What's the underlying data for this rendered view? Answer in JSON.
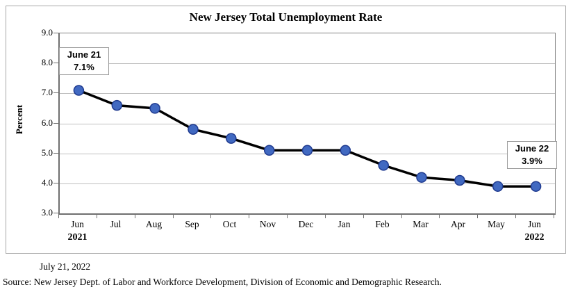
{
  "chart_data": {
    "type": "line",
    "title": "New Jersey Total Unemployment Rate",
    "xlabel": "",
    "ylabel": "Percent",
    "categories": [
      "Jun",
      "Jul",
      "Aug",
      "Sep",
      "Oct",
      "Nov",
      "Dec",
      "Jan",
      "Feb",
      "Mar",
      "Apr",
      "May",
      "Jun"
    ],
    "year_labels": [
      {
        "category_index": 0,
        "label": "2021"
      },
      {
        "category_index": 12,
        "label": "2022"
      }
    ],
    "series": [
      {
        "name": "New Jersey Total Unemployment Rate",
        "values": [
          7.1,
          6.6,
          6.5,
          5.8,
          5.5,
          5.1,
          5.1,
          5.1,
          4.6,
          4.2,
          4.1,
          3.9,
          3.9
        ]
      }
    ],
    "ylim": [
      3.0,
      9.0
    ],
    "ytick_step": 1.0,
    "ytick_labels": [
      "3.0",
      "4.0",
      "5.0",
      "6.0",
      "7.0",
      "8.0",
      "9.0"
    ],
    "grid": "horizontal",
    "legend": "none",
    "colors": {
      "line": "#000000",
      "marker_fill": "#4169c1",
      "marker_stroke": "#1f3a8f",
      "gridline": "#bfbfbf",
      "axis": "#6f6f6f"
    },
    "annotations": [
      {
        "line1": "June 21",
        "line2": "7.1%"
      },
      {
        "line1": "June 22",
        "line2": "3.9%"
      }
    ]
  },
  "footer": {
    "date": "July 21, 2022",
    "source": "Source: New Jersey Dept. of Labor and Workforce Development, Division of Economic and Demographic Research."
  }
}
